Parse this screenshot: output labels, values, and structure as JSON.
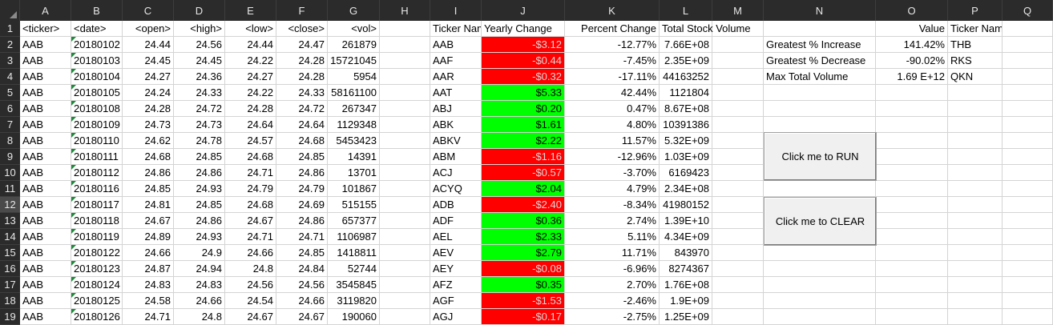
{
  "columns": [
    "A",
    "B",
    "C",
    "D",
    "E",
    "F",
    "G",
    "H",
    "I",
    "J",
    "K",
    "L",
    "M",
    "N",
    "O",
    "P",
    "Q"
  ],
  "header_row": {
    "a": "<ticker>",
    "b": "<date>",
    "c": "<open>",
    "d": "<high>",
    "e": "<low>",
    "f": "<close>",
    "g": "<vol>",
    "i": "Ticker Name",
    "j": "Yearly Change",
    "k": "Percent Change",
    "l": "Total Stock Volume",
    "o": "Value",
    "p": "Ticker Name"
  },
  "rows": [
    {
      "num": "2",
      "a": "AAB",
      "b": "20180102",
      "c": "24.44",
      "d": "24.56",
      "e": "24.44",
      "f": "24.47",
      "g": "261879",
      "i": "AAB",
      "j": "-$3.12",
      "j_color": "red",
      "k": "-12.77%",
      "l": "7.66E+08"
    },
    {
      "num": "3",
      "a": "AAB",
      "b": "20180103",
      "c": "24.45",
      "d": "24.45",
      "e": "24.22",
      "f": "24.28",
      "g": "15721045",
      "i": "AAF",
      "j": "-$0.44",
      "j_color": "red",
      "k": "-7.45%",
      "l": "2.35E+09"
    },
    {
      "num": "4",
      "a": "AAB",
      "b": "20180104",
      "c": "24.27",
      "d": "24.36",
      "e": "24.27",
      "f": "24.28",
      "g": "5954",
      "i": "AAR",
      "j": "-$0.32",
      "j_color": "red",
      "k": "-17.11%",
      "l": "44163252"
    },
    {
      "num": "5",
      "a": "AAB",
      "b": "20180105",
      "c": "24.24",
      "d": "24.33",
      "e": "24.22",
      "f": "24.33",
      "g": "58161100",
      "i": "AAT",
      "j": "$5.33",
      "j_color": "green",
      "k": "42.44%",
      "l": "1121804"
    },
    {
      "num": "6",
      "a": "AAB",
      "b": "20180108",
      "c": "24.28",
      "d": "24.72",
      "e": "24.28",
      "f": "24.72",
      "g": "267347",
      "i": "ABJ",
      "j": "$0.20",
      "j_color": "green",
      "k": "0.47%",
      "l": "8.67E+08"
    },
    {
      "num": "7",
      "a": "AAB",
      "b": "20180109",
      "c": "24.73",
      "d": "24.73",
      "e": "24.64",
      "f": "24.64",
      "g": "1129348",
      "i": "ABK",
      "j": "$1.61",
      "j_color": "green",
      "k": "4.80%",
      "l": "10391386"
    },
    {
      "num": "8",
      "a": "AAB",
      "b": "20180110",
      "c": "24.62",
      "d": "24.78",
      "e": "24.57",
      "f": "24.68",
      "g": "5453423",
      "i": "ABKV",
      "j": "$2.22",
      "j_color": "green",
      "k": "11.57%",
      "l": "5.32E+09"
    },
    {
      "num": "9",
      "a": "AAB",
      "b": "20180111",
      "c": "24.68",
      "d": "24.85",
      "e": "24.68",
      "f": "24.85",
      "g": "14391",
      "i": "ABM",
      "j": "-$1.16",
      "j_color": "red",
      "k": "-12.96%",
      "l": "1.03E+09"
    },
    {
      "num": "10",
      "a": "AAB",
      "b": "20180112",
      "c": "24.86",
      "d": "24.86",
      "e": "24.71",
      "f": "24.86",
      "g": "13701",
      "i": "ACJ",
      "j": "-$0.57",
      "j_color": "red",
      "k": "-3.70%",
      "l": "6169423"
    },
    {
      "num": "11",
      "a": "AAB",
      "b": "20180116",
      "c": "24.85",
      "d": "24.93",
      "e": "24.79",
      "f": "24.79",
      "g": "101867",
      "i": "ACYQ",
      "j": "$2.04",
      "j_color": "green",
      "k": "4.79%",
      "l": "2.34E+08"
    },
    {
      "num": "12",
      "a": "AAB",
      "b": "20180117",
      "c": "24.81",
      "d": "24.85",
      "e": "24.68",
      "f": "24.69",
      "g": "515155",
      "i": "ADB",
      "j": "-$2.40",
      "j_color": "red",
      "k": "-8.34%",
      "l": "41980152"
    },
    {
      "num": "13",
      "a": "AAB",
      "b": "20180118",
      "c": "24.67",
      "d": "24.86",
      "e": "24.67",
      "f": "24.86",
      "g": "657377",
      "i": "ADF",
      "j": "$0.36",
      "j_color": "green",
      "k": "2.74%",
      "l": "1.39E+10"
    },
    {
      "num": "14",
      "a": "AAB",
      "b": "20180119",
      "c": "24.89",
      "d": "24.93",
      "e": "24.71",
      "f": "24.71",
      "g": "1106987",
      "i": "AEL",
      "j": "$2.33",
      "j_color": "green",
      "k": "5.11%",
      "l": "4.34E+09"
    },
    {
      "num": "15",
      "a": "AAB",
      "b": "20180122",
      "c": "24.66",
      "d": "24.9",
      "e": "24.66",
      "f": "24.85",
      "g": "1418811",
      "i": "AEV",
      "j": "$2.79",
      "j_color": "green",
      "k": "11.71%",
      "l": "843970"
    },
    {
      "num": "16",
      "a": "AAB",
      "b": "20180123",
      "c": "24.87",
      "d": "24.94",
      "e": "24.8",
      "f": "24.84",
      "g": "52744",
      "i": "AEY",
      "j": "-$0.08",
      "j_color": "red",
      "k": "-6.96%",
      "l": "8274367"
    },
    {
      "num": "17",
      "a": "AAB",
      "b": "20180124",
      "c": "24.83",
      "d": "24.83",
      "e": "24.56",
      "f": "24.56",
      "g": "3545845",
      "i": "AFZ",
      "j": "$0.35",
      "j_color": "green",
      "k": "2.70%",
      "l": "1.76E+08"
    },
    {
      "num": "18",
      "a": "AAB",
      "b": "20180125",
      "c": "24.58",
      "d": "24.66",
      "e": "24.54",
      "f": "24.66",
      "g": "3119820",
      "i": "AGF",
      "j": "-$1.53",
      "j_color": "red",
      "k": "-2.46%",
      "l": "1.9E+09"
    },
    {
      "num": "19",
      "a": "AAB",
      "b": "20180126",
      "c": "24.71",
      "d": "24.8",
      "e": "24.67",
      "f": "24.67",
      "g": "190060",
      "i": "AGJ",
      "j": "-$0.17",
      "j_color": "red",
      "k": "-2.75%",
      "l": "1.25E+09"
    }
  ],
  "summary": [
    {
      "label": "Greatest % Increase",
      "value": "141.42%",
      "ticker": "THB"
    },
    {
      "label": "Greatest % Decrease",
      "value": "-90.02%",
      "ticker": "RKS"
    },
    {
      "label": "Max Total Volume",
      "value": "1.69 E+12",
      "ticker": "QKN"
    }
  ],
  "buttons": {
    "run": "Click me to RUN",
    "clear": "Click me to CLEAR"
  },
  "colors": {
    "header_bg": "#2b2b2b",
    "neg": "#ff0000",
    "pos": "#00ff00",
    "grid": "#d4d4d4"
  },
  "selected_row": "12"
}
